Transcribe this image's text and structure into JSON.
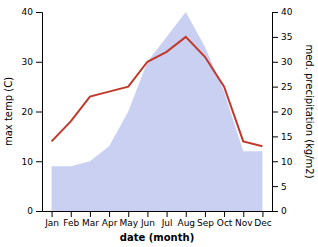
{
  "chart_data": {
    "type": "line",
    "categories": [
      "Jan",
      "Feb",
      "Mar",
      "Apr",
      "May",
      "Jun",
      "Jul",
      "Aug",
      "Sep",
      "Oct",
      "Nov",
      "Dec"
    ],
    "series": [
      {
        "type": "area",
        "color": "#b3bcec",
        "axis": "y2",
        "values": [
          9,
          9,
          10,
          13,
          20,
          30,
          35,
          40,
          33,
          24,
          12,
          12
        ]
      },
      {
        "type": "line",
        "color": "#c0392b",
        "values": [
          14,
          18,
          23,
          24,
          25,
          30,
          32,
          35,
          31,
          25,
          14,
          13
        ]
      }
    ],
    "xlabel": "date (month)",
    "ylabel": "max temp (C)",
    "y2label": "med. precipitation (kg/m2)",
    "ylim": [
      0,
      40
    ],
    "yticks": [
      0,
      10,
      20,
      30,
      40
    ],
    "y2lim": [
      0,
      40
    ],
    "y2ticks": [
      0,
      5,
      10,
      15,
      20,
      25,
      30,
      35,
      40
    ],
    "grid": false
  }
}
